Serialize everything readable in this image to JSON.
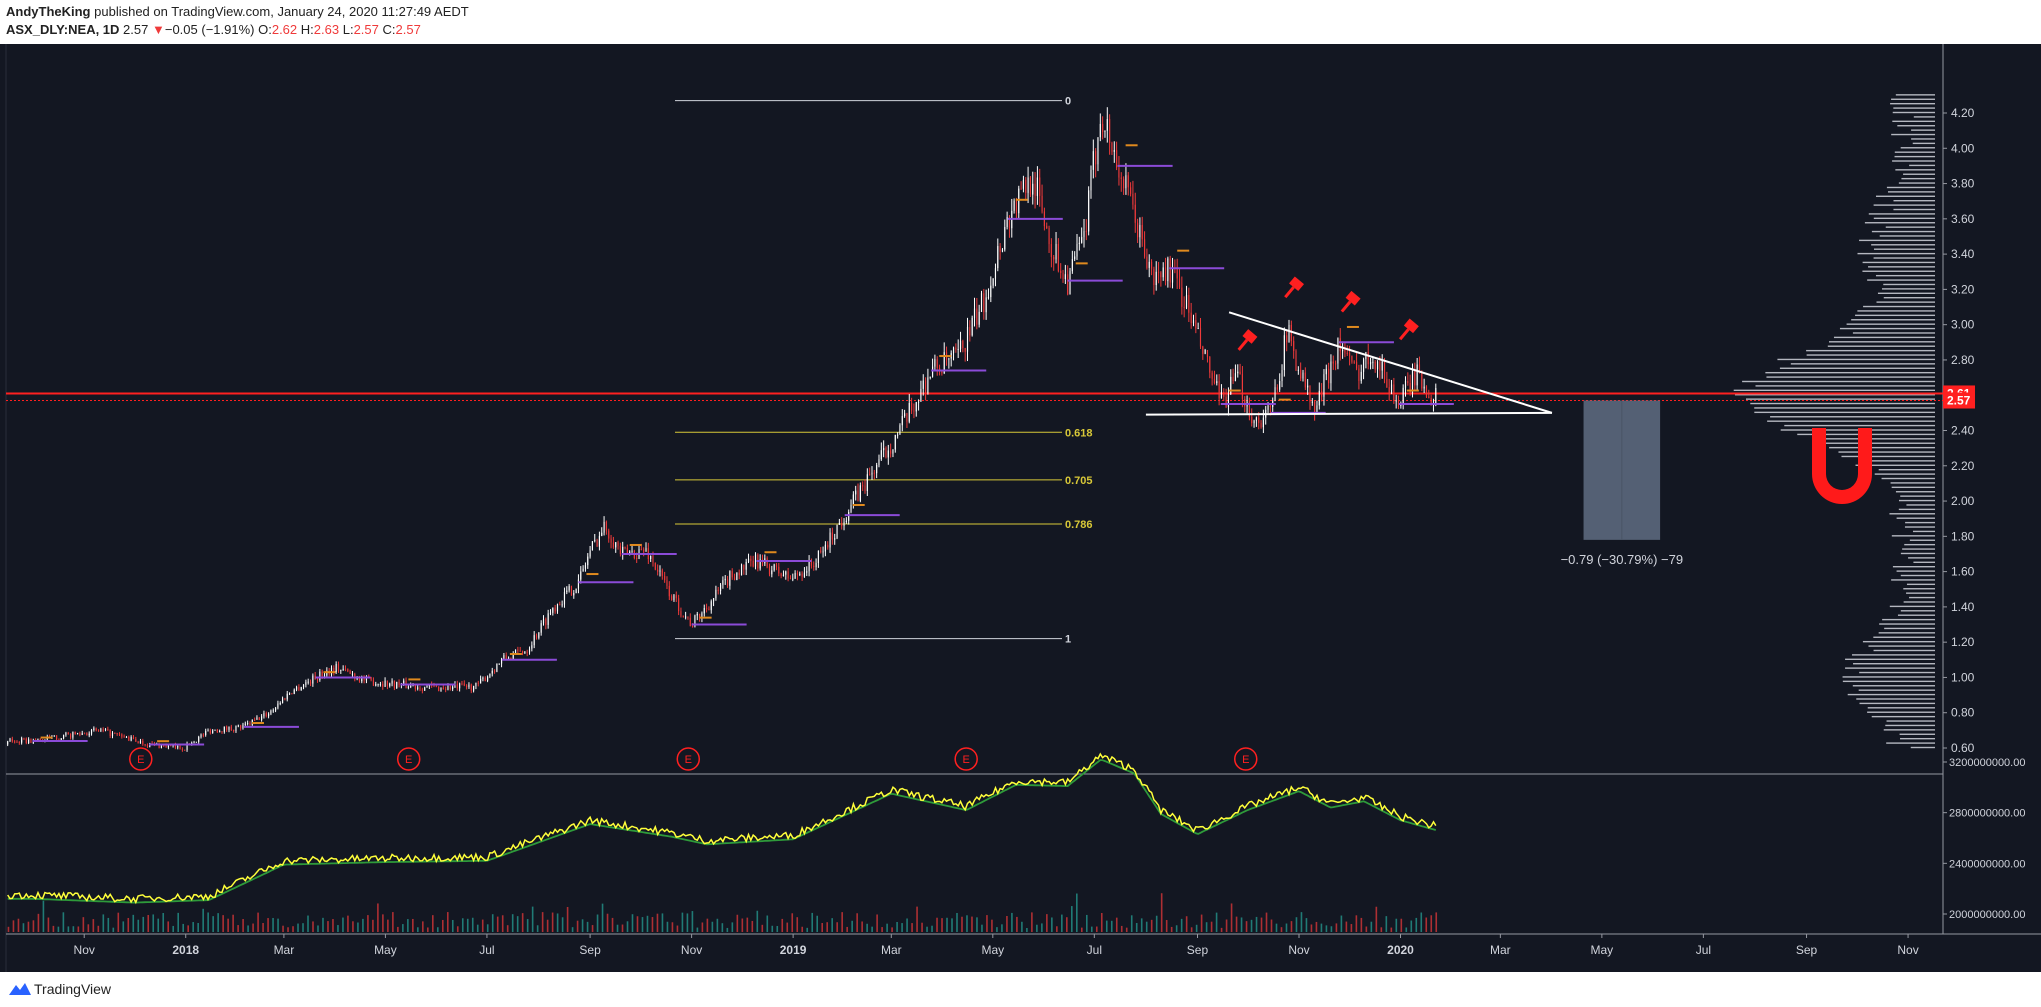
{
  "header": {
    "author": "AndyTheKing",
    "published_text": "published on TradingView.com, January 24, 2020 11:27:49 AEDT",
    "symbol": "ASX_DLY:NEA, 1D",
    "last": "2.57",
    "arrow": "▼",
    "change": "−0.05 (−1.91%)",
    "o_label": "O:",
    "o": "2.62",
    "h_label": "H:",
    "h": "2.63",
    "l_label": "L:",
    "l": "2.57",
    "c_label": "C:",
    "c": "2.57"
  },
  "footer": {
    "brand": "TradingView"
  },
  "colors": {
    "background": "#131722",
    "up": "#ffffff",
    "down": "#ef3a3a",
    "fib": "#d8c838",
    "pivot": "#8b4bd8",
    "signal": "#ff2020",
    "volume_line": "#ffff3a",
    "volume_ma": "#2e9a3a"
  },
  "chart_data": {
    "type": "candlestick",
    "symbol": "ASX_DLY:NEA",
    "interval": "1D",
    "price_axis": {
      "ticks": [
        4.2,
        4.0,
        3.8,
        3.6,
        3.4,
        3.2,
        3.0,
        2.8,
        2.6,
        2.4,
        2.2,
        2.0,
        1.8,
        1.6,
        1.4,
        1.2,
        1.0,
        0.8,
        0.6
      ],
      "range": [
        0.5,
        4.3
      ]
    },
    "price_labels": [
      {
        "value": 2.61,
        "label": "2.61"
      },
      {
        "value": 2.57,
        "label": "2.57"
      }
    ],
    "time_axis": [
      "Nov",
      "2018",
      "Mar",
      "May",
      "Jul",
      "Sep",
      "Nov",
      "2019",
      "Mar",
      "May",
      "Jul",
      "Sep",
      "Nov",
      "2020",
      "Mar",
      "May",
      "Jul",
      "Sep",
      "Nov"
    ],
    "price_anchors": [
      [
        "2017-10-01",
        0.64
      ],
      [
        "2017-10-15",
        0.66
      ],
      [
        "2017-11-10",
        0.7
      ],
      [
        "2017-12-10",
        0.62
      ],
      [
        "2017-12-31",
        0.6
      ],
      [
        "2018-01-15",
        0.7
      ],
      [
        "2018-02-05",
        0.72
      ],
      [
        "2018-02-20",
        0.8
      ],
      [
        "2018-03-05",
        0.92
      ],
      [
        "2018-03-20",
        1.0
      ],
      [
        "2018-04-01",
        1.06
      ],
      [
        "2018-04-20",
        0.98
      ],
      [
        "2018-05-10",
        0.96
      ],
      [
        "2018-06-01",
        0.94
      ],
      [
        "2018-06-25",
        0.95
      ],
      [
        "2018-07-10",
        1.1
      ],
      [
        "2018-07-25",
        1.16
      ],
      [
        "2018-08-10",
        1.4
      ],
      [
        "2018-08-25",
        1.54
      ],
      [
        "2018-09-01",
        1.72
      ],
      [
        "2018-09-10",
        1.86
      ],
      [
        "2018-09-20",
        1.7
      ],
      [
        "2018-10-05",
        1.72
      ],
      [
        "2018-10-20",
        1.46
      ],
      [
        "2018-11-01",
        1.3
      ],
      [
        "2018-11-10",
        1.4
      ],
      [
        "2018-11-25",
        1.58
      ],
      [
        "2018-12-10",
        1.66
      ],
      [
        "2018-12-31",
        1.56
      ],
      [
        "2019-01-15",
        1.66
      ],
      [
        "2019-02-01",
        1.92
      ],
      [
        "2019-02-20",
        2.2
      ],
      [
        "2019-03-10",
        2.46
      ],
      [
        "2019-03-25",
        2.74
      ],
      [
        "2019-04-10",
        2.82
      ],
      [
        "2019-04-25",
        3.12
      ],
      [
        "2019-05-10",
        3.6
      ],
      [
        "2019-05-25",
        3.85
      ],
      [
        "2019-06-05",
        3.45
      ],
      [
        "2019-06-15",
        3.25
      ],
      [
        "2019-06-25",
        3.5
      ],
      [
        "2019-07-05",
        4.22
      ],
      [
        "2019-07-15",
        3.9
      ],
      [
        "2019-07-25",
        3.62
      ],
      [
        "2019-08-05",
        3.25
      ],
      [
        "2019-08-15",
        3.32
      ],
      [
        "2019-08-25",
        3.12
      ],
      [
        "2019-09-05",
        2.82
      ],
      [
        "2019-09-15",
        2.55
      ],
      [
        "2019-09-25",
        2.7
      ],
      [
        "2019-10-05",
        2.45
      ],
      [
        "2019-10-15",
        2.5
      ],
      [
        "2019-10-25",
        2.96
      ],
      [
        "2019-11-10",
        2.5
      ],
      [
        "2019-11-25",
        2.9
      ],
      [
        "2019-12-05",
        2.72
      ],
      [
        "2019-12-15",
        2.85
      ],
      [
        "2019-12-31",
        2.55
      ],
      [
        "2020-01-10",
        2.72
      ],
      [
        "2020-01-23",
        2.57
      ]
    ],
    "fibonacci": {
      "high": 4.27,
      "low": 1.22,
      "levels": [
        {
          "ratio": 0,
          "label": "0",
          "value": 4.27
        },
        {
          "ratio": 0.618,
          "label": "0.618",
          "value": 2.39
        },
        {
          "ratio": 0.705,
          "label": "0.705",
          "value": 2.12
        },
        {
          "ratio": 0.786,
          "label": "0.786",
          "value": 1.87
        },
        {
          "ratio": 1,
          "label": "1",
          "value": 1.22
        }
      ]
    },
    "resistance_line": 2.61,
    "triangle": {
      "upper": [
        [
          "2019-09-20",
          3.07
        ],
        [
          "2020-04-01",
          2.5
        ]
      ],
      "lower": [
        [
          "2019-08-01",
          2.49
        ],
        [
          "2020-04-01",
          2.5
        ]
      ]
    },
    "projection": {
      "from": 2.57,
      "to": 1.78,
      "label": "−0.79 (−30.79%) −79",
      "start": "2020-04-20",
      "end": "2020-06-05"
    },
    "earnings_markers": [
      {
        "date": "2017-12-05",
        "label": "E"
      },
      {
        "date": "2018-05-15",
        "label": "E"
      },
      {
        "date": "2018-10-30",
        "label": "E"
      },
      {
        "date": "2019-04-15",
        "label": "E"
      },
      {
        "date": "2019-09-30",
        "label": "E"
      }
    ],
    "sell_signals": [
      "2019-09-30",
      "2019-10-28",
      "2019-12-01",
      "2020-01-05"
    ],
    "volume_axis": {
      "ticks": [
        "3200000000.00",
        "2800000000.00",
        "2400000000.00",
        "2000000000.00"
      ],
      "tick_values": [
        3200000000,
        2800000000,
        2400000000,
        2000000000
      ],
      "range": [
        1950000000,
        3320000000
      ]
    },
    "volume_anchors": [
      [
        "2017-10-01",
        2150000000
      ],
      [
        "2017-12-01",
        2120000000
      ],
      [
        "2018-01-15",
        2140000000
      ],
      [
        "2018-03-01",
        2420000000
      ],
      [
        "2018-05-01",
        2440000000
      ],
      [
        "2018-07-01",
        2450000000
      ],
      [
        "2018-09-01",
        2740000000
      ],
      [
        "2018-10-20",
        2640000000
      ],
      [
        "2018-11-10",
        2580000000
      ],
      [
        "2019-01-01",
        2620000000
      ],
      [
        "2019-03-01",
        2980000000
      ],
      [
        "2019-04-15",
        2850000000
      ],
      [
        "2019-05-15",
        3050000000
      ],
      [
        "2019-06-15",
        3040000000
      ],
      [
        "2019-07-05",
        3250000000
      ],
      [
        "2019-07-25",
        3140000000
      ],
      [
        "2019-08-10",
        2820000000
      ],
      [
        "2019-09-01",
        2660000000
      ],
      [
        "2019-10-01",
        2850000000
      ],
      [
        "2019-11-01",
        3000000000
      ],
      [
        "2019-11-20",
        2870000000
      ],
      [
        "2019-12-10",
        2920000000
      ],
      [
        "2020-01-01",
        2770000000
      ],
      [
        "2020-01-23",
        2690000000
      ]
    ]
  }
}
